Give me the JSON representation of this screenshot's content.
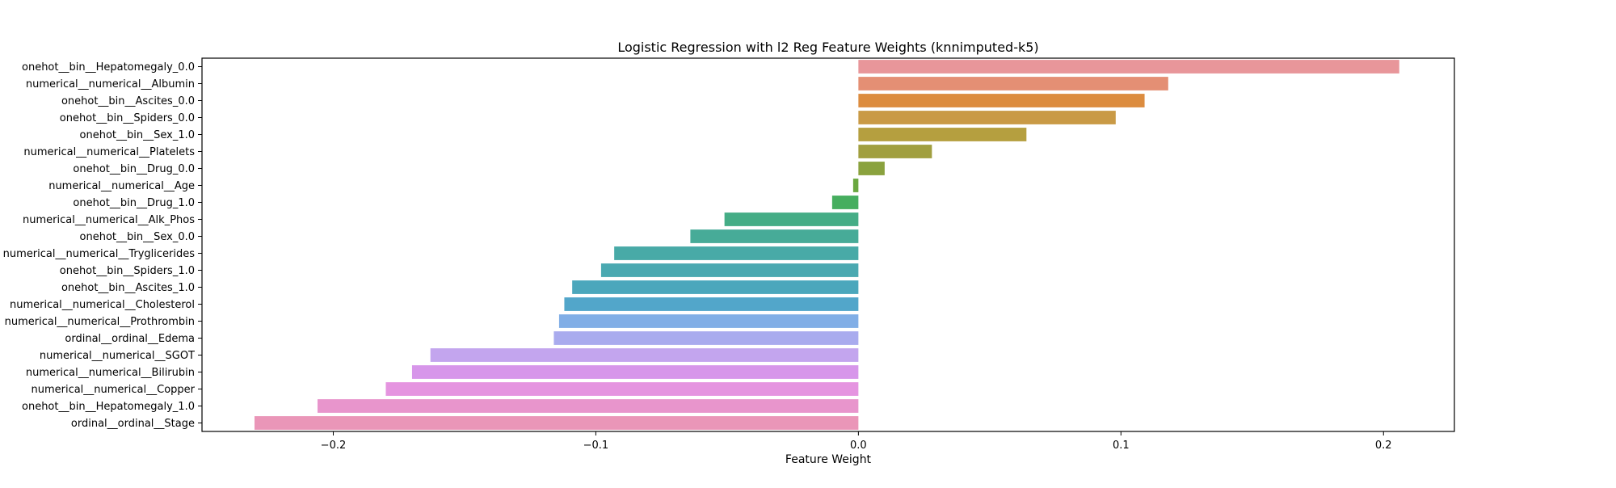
{
  "chart_data": {
    "type": "bar",
    "orientation": "horizontal",
    "title": "Logistic Regression with l2 Reg Feature Weights (knnimputed-k5)",
    "xlabel": "Feature Weight",
    "ylabel": "",
    "xlim": [
      -0.25,
      0.227
    ],
    "xticks": [
      -0.2,
      -0.1,
      0.0,
      0.1,
      0.2
    ],
    "xtick_labels": [
      "−0.2",
      "−0.1",
      "0.0",
      "0.1",
      "0.2"
    ],
    "grid": false,
    "categories": [
      "onehot__bin__Hepatomegaly_0.0",
      "numerical__numerical__Albumin",
      "onehot__bin__Ascites_0.0",
      "onehot__bin__Spiders_0.0",
      "onehot__bin__Sex_1.0",
      "numerical__numerical__Platelets",
      "onehot__bin__Drug_0.0",
      "numerical__numerical__Age",
      "onehot__bin__Drug_1.0",
      "numerical__numerical__Alk_Phos",
      "onehot__bin__Sex_0.0",
      "numerical__numerical__Tryglicerides",
      "onehot__bin__Spiders_1.0",
      "onehot__bin__Ascites_1.0",
      "numerical__numerical__Cholesterol",
      "numerical__numerical__Prothrombin",
      "ordinal__ordinal__Edema",
      "numerical__numerical__SGOT",
      "numerical__numerical__Bilirubin",
      "numerical__numerical__Copper",
      "onehot__bin__Hepatomegaly_1.0",
      "ordinal__ordinal__Stage"
    ],
    "values": [
      0.206,
      0.118,
      0.109,
      0.098,
      0.064,
      0.028,
      0.01,
      -0.002,
      -0.01,
      -0.051,
      -0.064,
      -0.093,
      -0.098,
      -0.109,
      -0.112,
      -0.114,
      -0.116,
      -0.163,
      -0.17,
      -0.18,
      -0.206,
      -0.23
    ],
    "colors": [
      "#e8969a",
      "#e48f74",
      "#dc8c3f",
      "#c99a46",
      "#b59f3f",
      "#a19f3f",
      "#8aa23e",
      "#6aa73f",
      "#46ae5f",
      "#45ad86",
      "#47ab98",
      "#48aaa7",
      "#4aa9b1",
      "#4ba7bc",
      "#52a6ca",
      "#81aee6",
      "#a9abee",
      "#c3a5ee",
      "#d796ea",
      "#e594e0",
      "#e895cc",
      "#ea96b8"
    ]
  }
}
